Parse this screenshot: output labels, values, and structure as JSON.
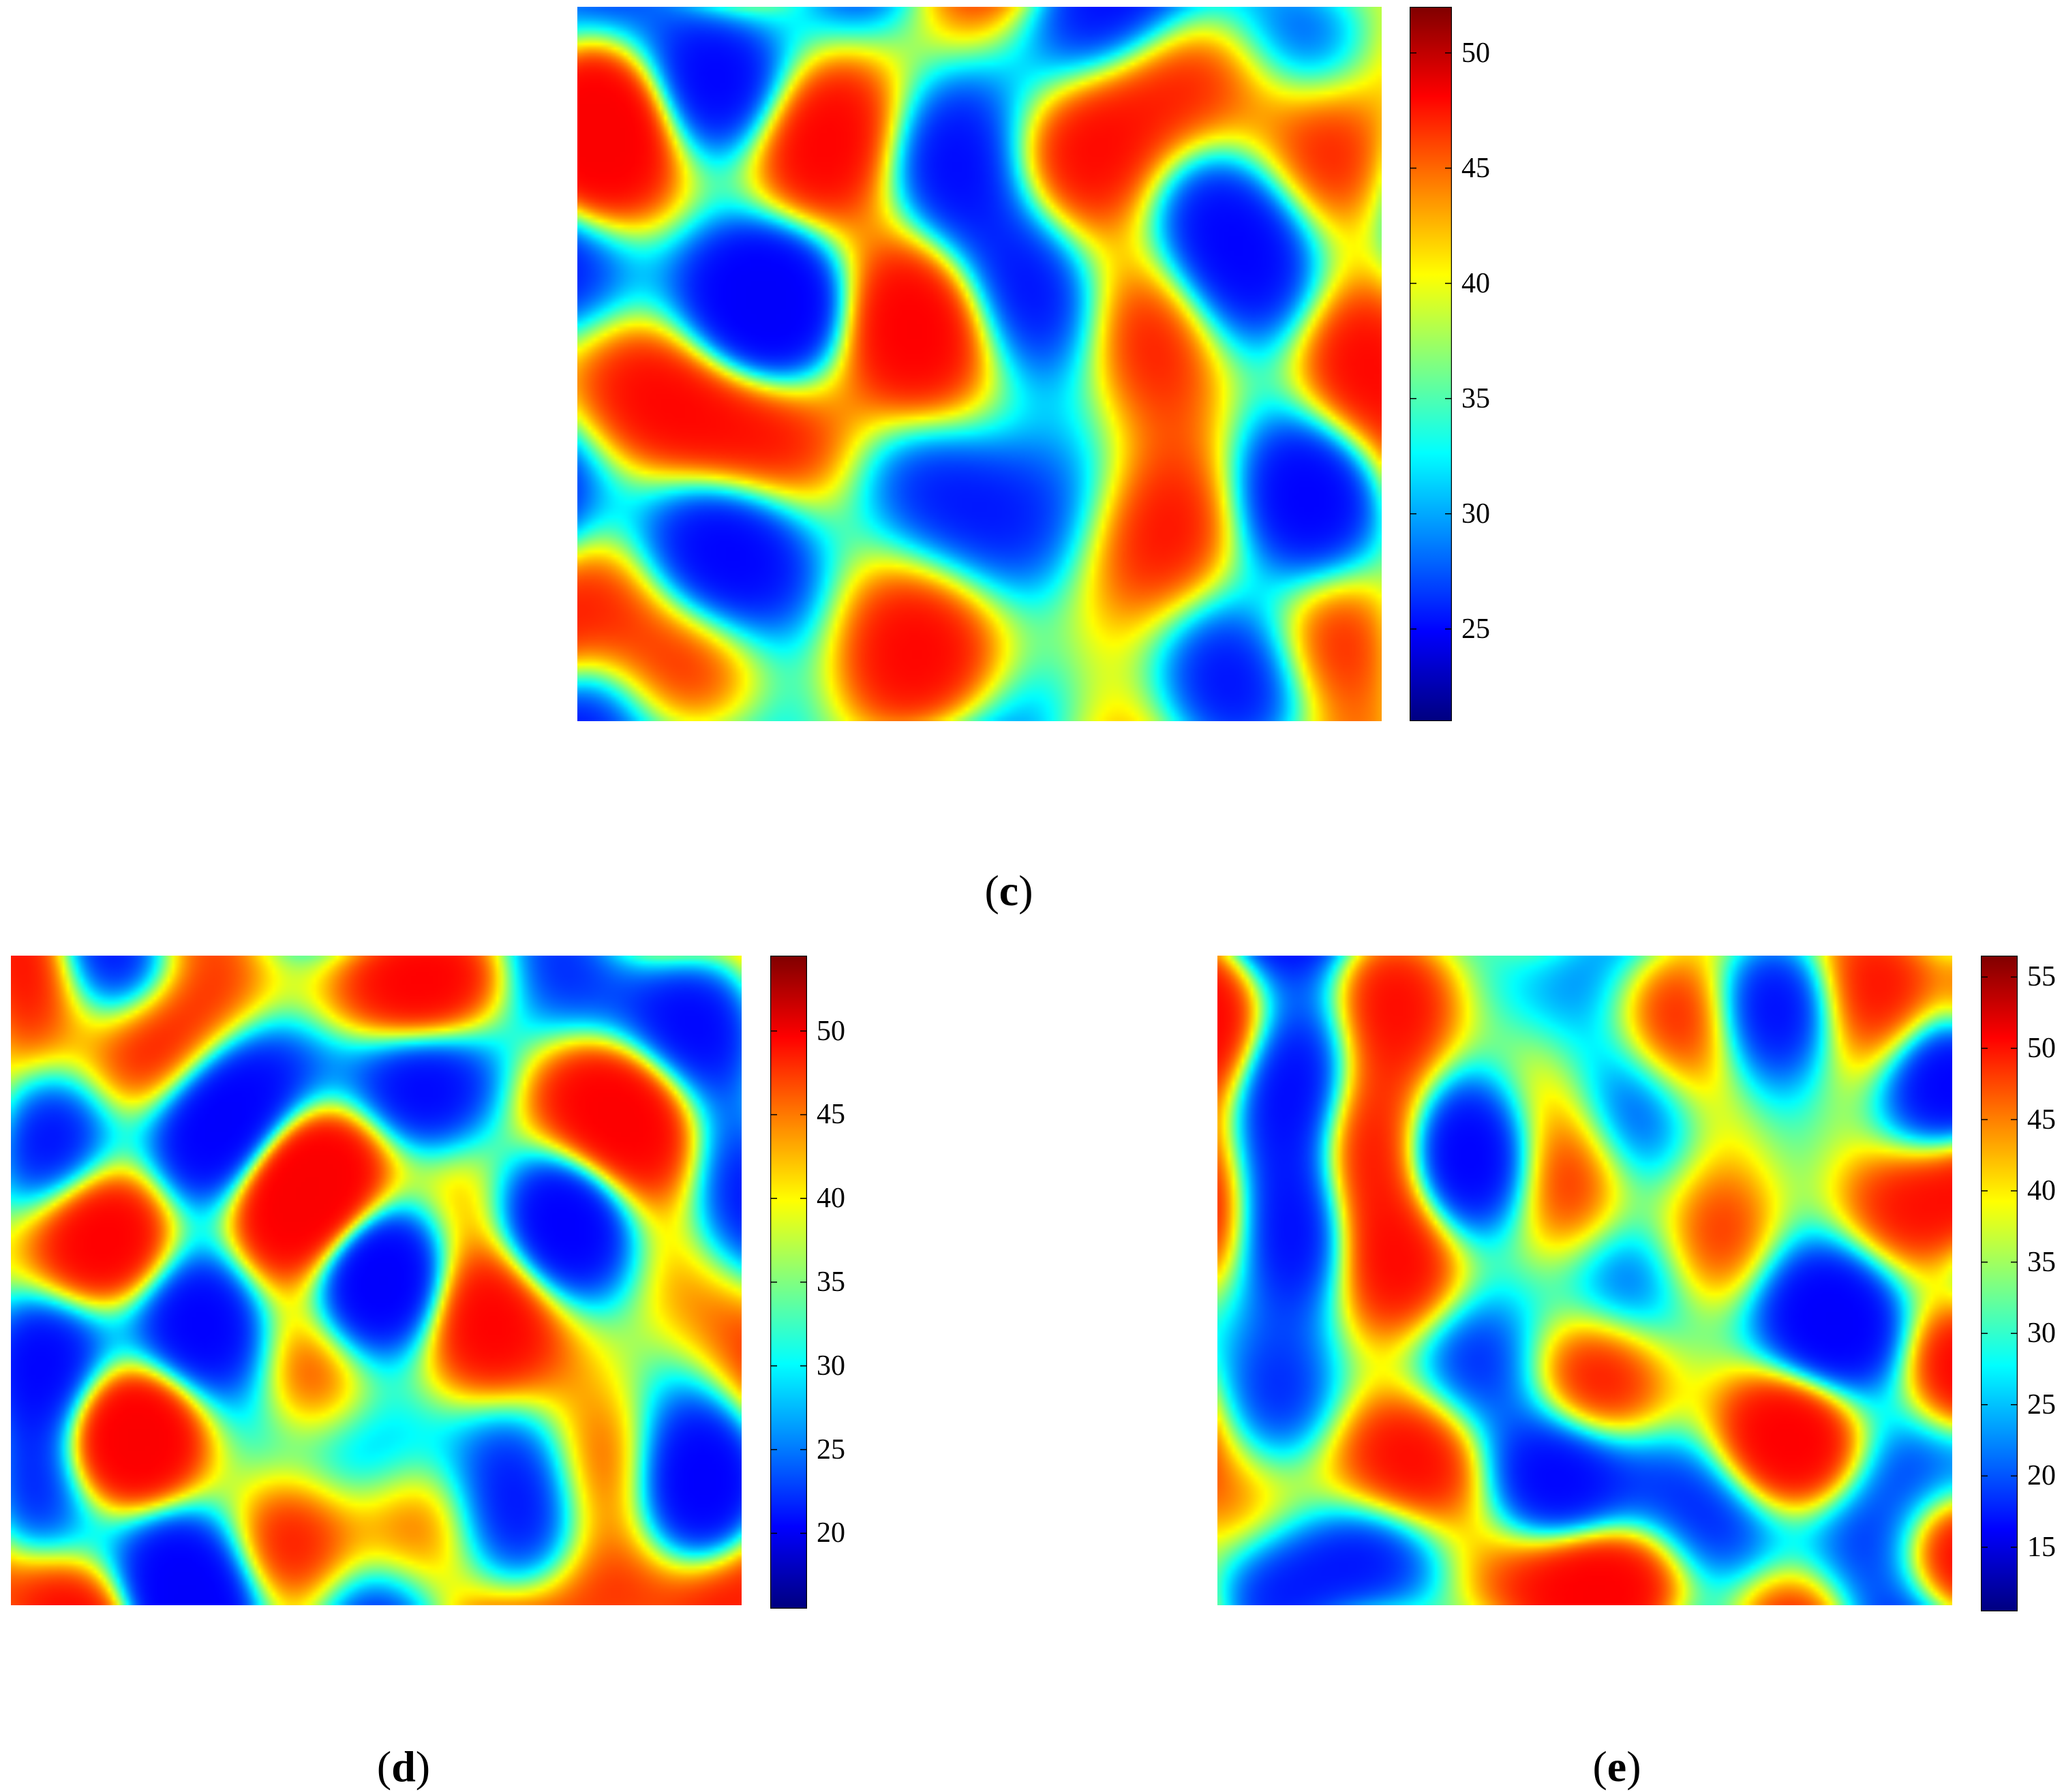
{
  "chart_data": [
    {
      "type": "heatmap",
      "panel_label": "c",
      "caption_open": "(",
      "caption_close": ")",
      "colormap": "jet",
      "colorbar": {
        "range": [
          21,
          52
        ],
        "ticks": [
          25,
          30,
          35,
          40,
          45,
          50
        ],
        "tick_labels": [
          "25",
          "30",
          "35",
          "40",
          "45",
          "50"
        ]
      },
      "x": [],
      "y": [],
      "grid": false,
      "legend": "none"
    },
    {
      "type": "heatmap",
      "panel_label": "d",
      "caption_open": "(",
      "caption_close": ")",
      "colormap": "jet",
      "colorbar": {
        "range": [
          15.5,
          54.5
        ],
        "ticks": [
          20,
          25,
          30,
          35,
          40,
          45,
          50
        ],
        "tick_labels": [
          "20",
          "25",
          "30",
          "35",
          "40",
          "45",
          "50"
        ]
      },
      "x": [],
      "y": [],
      "grid": false,
      "legend": "none"
    },
    {
      "type": "heatmap",
      "panel_label": "e",
      "caption_open": "(",
      "caption_close": ")",
      "colormap": "jet",
      "colorbar": {
        "range": [
          10.5,
          56.5
        ],
        "ticks": [
          15,
          20,
          25,
          30,
          35,
          40,
          45,
          50,
          55
        ],
        "tick_labels": [
          "15",
          "20",
          "25",
          "30",
          "35",
          "40",
          "45",
          "50",
          "55"
        ]
      },
      "x": [],
      "y": [],
      "grid": false,
      "legend": "none"
    }
  ]
}
